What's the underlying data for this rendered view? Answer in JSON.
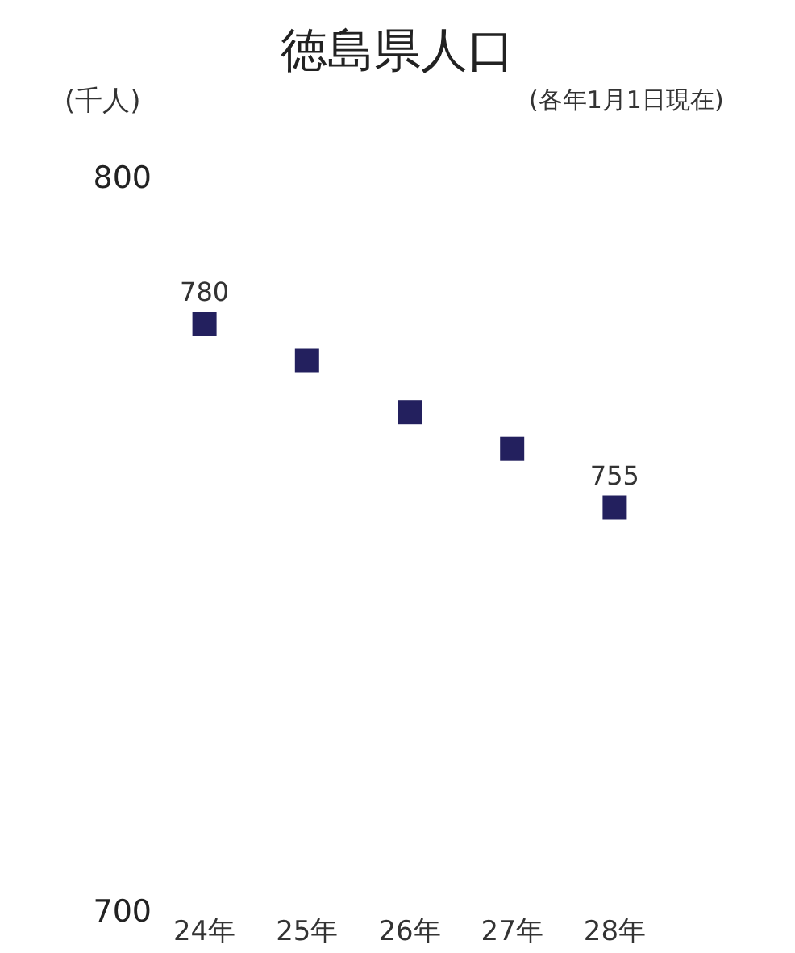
{
  "chart_data": {
    "type": "scatter",
    "title": "徳島県人口",
    "subtitle": "(各年1月1日現在)",
    "ylabel": "(千人)",
    "categories": [
      "24年",
      "25年",
      "26年",
      "27年",
      "28年"
    ],
    "series": [
      {
        "color": "#23205e",
        "values": [
          780,
          775,
          768,
          763,
          755
        ],
        "value_labels": [
          "780",
          null,
          null,
          null,
          "755"
        ]
      }
    ],
    "ylim": [
      700,
      800
    ],
    "yticks": [
      700,
      800
    ],
    "marker": "square",
    "grid": false
  }
}
